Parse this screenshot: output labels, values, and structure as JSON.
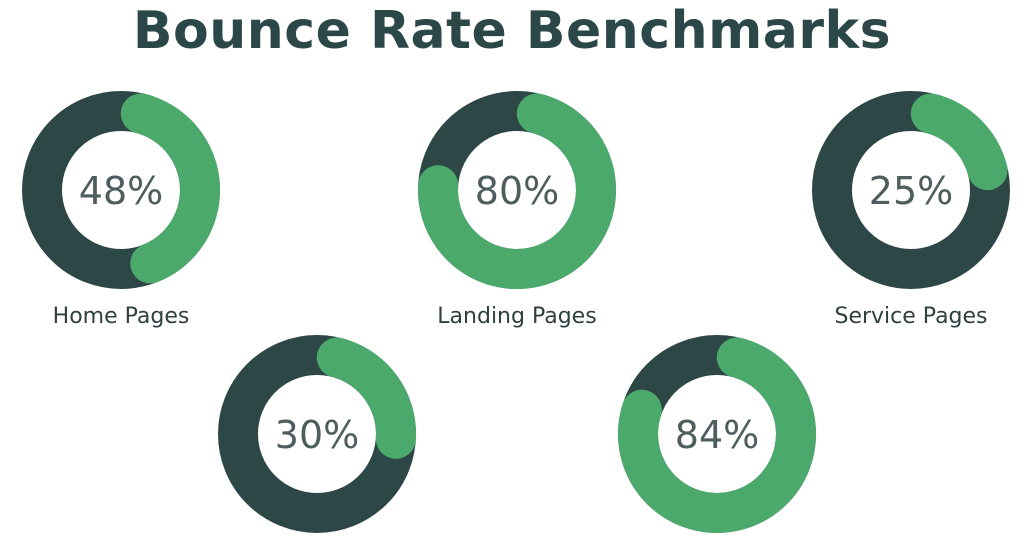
{
  "chart_data": {
    "type": "pie",
    "title": "Bounce Rate Benchmarks",
    "charts": [
      {
        "label": "Home Pages",
        "value": 48,
        "display": "48%"
      },
      {
        "label": "Landing Pages",
        "value": 80,
        "display": "80%"
      },
      {
        "label": "Service Pages",
        "value": 25,
        "display": "25%"
      },
      {
        "label": "",
        "value": 30,
        "display": "30%"
      },
      {
        "label": "",
        "value": 84,
        "display": "84%"
      }
    ]
  },
  "colors": {
    "filled": "#4ba96c",
    "track": "#2d4646",
    "title": "#2b4747"
  }
}
